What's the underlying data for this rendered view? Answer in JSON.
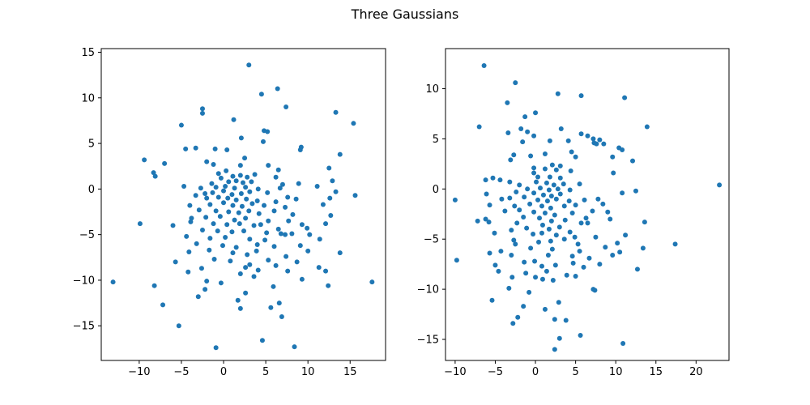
{
  "figure": {
    "title": "Three Gaussians"
  },
  "colors": {
    "marker": "#1f77b4",
    "axes": "#000000",
    "background": "#ffffff"
  },
  "chart_data": [
    {
      "type": "scatter",
      "title": "",
      "xlabel": "",
      "ylabel": "",
      "xlim": [
        -14.5,
        19.2
      ],
      "ylim": [
        -18.8,
        15.4
      ],
      "xticks": [
        -10,
        -5,
        0,
        5,
        10,
        15
      ],
      "yticks": [
        -15,
        -10,
        -5,
        0,
        5,
        10,
        15
      ],
      "grid": false,
      "points": [
        [
          3.0,
          13.6
        ],
        [
          6.4,
          11.0
        ],
        [
          4.5,
          10.4
        ],
        [
          7.4,
          9.0
        ],
        [
          -2.5,
          8.8
        ],
        [
          -2.5,
          8.3
        ],
        [
          13.3,
          8.4
        ],
        [
          1.2,
          7.6
        ],
        [
          -5.0,
          7.0
        ],
        [
          15.4,
          7.2
        ],
        [
          4.8,
          6.4
        ],
        [
          5.2,
          6.3
        ],
        [
          2.1,
          5.6
        ],
        [
          4.7,
          5.2
        ],
        [
          -3.3,
          4.5
        ],
        [
          -4.5,
          4.4
        ],
        [
          -1.0,
          4.4
        ],
        [
          0.4,
          4.3
        ],
        [
          9.2,
          4.6
        ],
        [
          9.1,
          4.3
        ],
        [
          13.8,
          3.8
        ],
        [
          2.5,
          3.4
        ],
        [
          -9.4,
          3.2
        ],
        [
          -7.0,
          2.8
        ],
        [
          -2.0,
          3.0
        ],
        [
          -1.2,
          2.7
        ],
        [
          2.0,
          2.6
        ],
        [
          5.3,
          2.6
        ],
        [
          6.5,
          2.1
        ],
        [
          12.5,
          2.3
        ],
        [
          -8.3,
          1.8
        ],
        [
          -8.1,
          1.4
        ],
        [
          0.3,
          2.0
        ],
        [
          -0.6,
          1.7
        ],
        [
          3.7,
          1.6
        ],
        [
          -0.3,
          1.2
        ],
        [
          1.1,
          1.4
        ],
        [
          2.0,
          1.5
        ],
        [
          2.8,
          1.3
        ],
        [
          6.2,
          1.3
        ],
        [
          12.9,
          0.9
        ],
        [
          -4.7,
          0.3
        ],
        [
          -1.4,
          0.6
        ],
        [
          0.6,
          0.8
        ],
        [
          1.5,
          0.9
        ],
        [
          2.3,
          0.7
        ],
        [
          3.3,
          0.8
        ],
        [
          7.0,
          0.5
        ],
        [
          8.9,
          0.6
        ],
        [
          11.1,
          0.3
        ],
        [
          -2.7,
          0.1
        ],
        [
          -0.9,
          0.2
        ],
        [
          0.2,
          0.3
        ],
        [
          1.3,
          0.1
        ],
        [
          2.6,
          0.2
        ],
        [
          4.1,
          0.0
        ],
        [
          6.7,
          0.1
        ],
        [
          13.3,
          -0.3
        ],
        [
          15.6,
          -0.7
        ],
        [
          -2.2,
          -0.5
        ],
        [
          -1.3,
          -0.4
        ],
        [
          0.0,
          -0.2
        ],
        [
          1.0,
          -0.6
        ],
        [
          2.1,
          -0.5
        ],
        [
          3.1,
          -0.3
        ],
        [
          5.2,
          -0.4
        ],
        [
          7.6,
          -0.9
        ],
        [
          12.6,
          -1.0
        ],
        [
          -3.3,
          -0.7
        ],
        [
          -2.0,
          -1.0
        ],
        [
          -0.6,
          -0.9
        ],
        [
          0.5,
          -1.0
        ],
        [
          1.5,
          -1.2
        ],
        [
          2.7,
          -1.1
        ],
        [
          4.0,
          -1.3
        ],
        [
          6.2,
          -1.4
        ],
        [
          8.6,
          -1.1
        ],
        [
          -4.0,
          -1.8
        ],
        [
          -1.6,
          -1.7
        ],
        [
          0.0,
          -1.5
        ],
        [
          1.1,
          -1.8
        ],
        [
          2.2,
          -1.9
        ],
        [
          3.4,
          -1.6
        ],
        [
          4.8,
          -1.8
        ],
        [
          7.3,
          -2.0
        ],
        [
          11.8,
          -1.7
        ],
        [
          -2.9,
          -2.3
        ],
        [
          -0.9,
          -2.4
        ],
        [
          0.6,
          -2.5
        ],
        [
          1.8,
          -2.6
        ],
        [
          3.0,
          -2.4
        ],
        [
          4.2,
          -2.7
        ],
        [
          6.0,
          -2.4
        ],
        [
          8.2,
          -2.8
        ],
        [
          -3.8,
          -3.2
        ],
        [
          -2.1,
          -3.1
        ],
        [
          -0.4,
          -3.0
        ],
        [
          1.3,
          -3.4
        ],
        [
          2.6,
          -3.2
        ],
        [
          5.3,
          -3.5
        ],
        [
          7.7,
          -3.5
        ],
        [
          12.7,
          -2.9
        ],
        [
          -3.9,
          -3.6
        ],
        [
          -1.2,
          -3.8
        ],
        [
          0.4,
          -3.9
        ],
        [
          1.9,
          -3.8
        ],
        [
          3.6,
          -4.0
        ],
        [
          4.4,
          -3.9
        ],
        [
          6.5,
          -4.4
        ],
        [
          9.3,
          -3.9
        ],
        [
          9.9,
          -4.3
        ],
        [
          12.1,
          -3.8
        ],
        [
          -2.5,
          -4.5
        ],
        [
          -0.7,
          -4.6
        ],
        [
          1.0,
          -4.7
        ],
        [
          2.4,
          -4.6
        ],
        [
          5.1,
          -4.8
        ],
        [
          6.8,
          -4.9
        ],
        [
          7.3,
          -5.0
        ],
        [
          8.1,
          -4.9
        ],
        [
          10.2,
          -5.0
        ],
        [
          -4.4,
          -5.2
        ],
        [
          -1.6,
          -5.4
        ],
        [
          0.2,
          -5.3
        ],
        [
          3.1,
          -5.5
        ],
        [
          4.9,
          -5.6
        ],
        [
          11.4,
          -5.5
        ],
        [
          -3.2,
          -6.0
        ],
        [
          -0.1,
          -6.2
        ],
        [
          1.5,
          -6.4
        ],
        [
          4.0,
          -6.1
        ],
        [
          6.0,
          -6.3
        ],
        [
          9.1,
          -6.2
        ],
        [
          -4.1,
          -6.9
        ],
        [
          -1.7,
          -6.7
        ],
        [
          1.1,
          -7.0
        ],
        [
          2.8,
          -7.2
        ],
        [
          7.4,
          -7.4
        ],
        [
          10.0,
          -6.8
        ],
        [
          13.8,
          -7.0
        ],
        [
          -1.1,
          -7.7
        ],
        [
          0.8,
          -7.9
        ],
        [
          3.1,
          -8.3
        ],
        [
          5.3,
          -7.8
        ],
        [
          8.7,
          -8.0
        ],
        [
          11.3,
          -8.6
        ],
        [
          -5.7,
          -8.0
        ],
        [
          -2.6,
          -8.7
        ],
        [
          2.6,
          -8.6
        ],
        [
          4.1,
          -8.9
        ],
        [
          6.2,
          -8.4
        ],
        [
          -4.2,
          -9.1
        ],
        [
          2.0,
          -9.3
        ],
        [
          3.6,
          -9.6
        ],
        [
          7.6,
          -9.0
        ],
        [
          12.1,
          -9.0
        ],
        [
          -13.1,
          -10.2
        ],
        [
          -8.2,
          -10.6
        ],
        [
          -2.0,
          -10.1
        ],
        [
          12.4,
          -10.6
        ],
        [
          17.6,
          -10.2
        ],
        [
          -2.2,
          -11.0
        ],
        [
          2.6,
          -11.4
        ],
        [
          -3.0,
          -11.8
        ],
        [
          -7.2,
          -12.7
        ],
        [
          6.6,
          -12.5
        ],
        [
          5.6,
          -13.0
        ],
        [
          6.9,
          -14.0
        ],
        [
          -5.3,
          -15.0
        ],
        [
          4.6,
          -16.6
        ],
        [
          -0.9,
          -17.4
        ],
        [
          8.4,
          -17.3
        ],
        [
          -9.9,
          -3.8
        ],
        [
          -6.0,
          -4.0
        ],
        [
          2.0,
          -13.1
        ],
        [
          3.9,
          -6.8
        ],
        [
          -0.3,
          -10.3
        ],
        [
          1.7,
          -12.2
        ],
        [
          9.3,
          -9.9
        ],
        [
          5.9,
          -10.7
        ]
      ]
    },
    {
      "type": "scatter",
      "title": "",
      "xlabel": "",
      "ylabel": "",
      "xlim": [
        -11.2,
        24.1
      ],
      "ylim": [
        -17.1,
        14.0
      ],
      "xticks": [
        -10,
        -5,
        0,
        5,
        10,
        15,
        20
      ],
      "yticks": [
        -15,
        -10,
        -5,
        0,
        5,
        10
      ],
      "grid": false,
      "points": [
        [
          -6.4,
          12.3
        ],
        [
          -2.5,
          10.6
        ],
        [
          2.8,
          9.5
        ],
        [
          5.7,
          9.3
        ],
        [
          11.1,
          9.1
        ],
        [
          -3.5,
          8.6
        ],
        [
          0.0,
          7.6
        ],
        [
          -1.3,
          7.2
        ],
        [
          -7.0,
          6.2
        ],
        [
          13.9,
          6.2
        ],
        [
          -1.8,
          6.0
        ],
        [
          -1.0,
          5.7
        ],
        [
          -3.4,
          5.6
        ],
        [
          -0.2,
          5.3
        ],
        [
          3.2,
          6.0
        ],
        [
          5.7,
          5.5
        ],
        [
          6.5,
          5.3
        ],
        [
          7.2,
          5.0
        ],
        [
          8.0,
          4.9
        ],
        [
          8.5,
          4.5
        ],
        [
          -1.6,
          4.7
        ],
        [
          1.8,
          4.8
        ],
        [
          4.1,
          4.8
        ],
        [
          7.3,
          4.6
        ],
        [
          7.6,
          4.5
        ],
        [
          10.4,
          4.1
        ],
        [
          10.8,
          3.9
        ],
        [
          -2.7,
          3.4
        ],
        [
          -0.6,
          3.3
        ],
        [
          1.2,
          3.5
        ],
        [
          4.5,
          3.7
        ],
        [
          5.0,
          3.2
        ],
        [
          9.6,
          3.2
        ],
        [
          12.1,
          2.8
        ],
        [
          -3.1,
          2.9
        ],
        [
          2.1,
          2.4
        ],
        [
          3.1,
          2.3
        ],
        [
          -0.2,
          2.1
        ],
        [
          1.2,
          2.0
        ],
        [
          2.6,
          1.9
        ],
        [
          4.4,
          1.8
        ],
        [
          9.7,
          1.6
        ],
        [
          -0.2,
          1.6
        ],
        [
          0.3,
          1.2
        ],
        [
          1.8,
          1.2
        ],
        [
          3.1,
          1.1
        ],
        [
          -5.3,
          1.1
        ],
        [
          -6.2,
          0.9
        ],
        [
          -4.4,
          0.9
        ],
        [
          -3.2,
          0.7
        ],
        [
          -2.0,
          0.4
        ],
        [
          0.1,
          0.7
        ],
        [
          1.4,
          0.6
        ],
        [
          2.3,
          0.4
        ],
        [
          3.5,
          0.5
        ],
        [
          5.5,
          0.5
        ],
        [
          22.9,
          0.4
        ],
        [
          -1.0,
          0.0
        ],
        [
          0.6,
          0.1
        ],
        [
          1.7,
          -0.1
        ],
        [
          2.8,
          0.0
        ],
        [
          4.3,
          -0.1
        ],
        [
          -2.4,
          -0.3
        ],
        [
          -0.2,
          -0.4
        ],
        [
          1.0,
          -0.6
        ],
        [
          2.0,
          -0.7
        ],
        [
          3.1,
          -0.5
        ],
        [
          10.8,
          -0.4
        ],
        [
          12.5,
          -0.2
        ],
        [
          -6.1,
          -0.5
        ],
        [
          -3.2,
          -0.9
        ],
        [
          -1.4,
          -0.8
        ],
        [
          0.3,
          -1.1
        ],
        [
          1.5,
          -1.2
        ],
        [
          2.6,
          -1.0
        ],
        [
          4.2,
          -1.2
        ],
        [
          6.1,
          -1.1
        ],
        [
          7.8,
          -1.0
        ],
        [
          -10.0,
          -1.1
        ],
        [
          -5.7,
          -1.6
        ],
        [
          -2.6,
          -1.7
        ],
        [
          -0.7,
          -1.5
        ],
        [
          0.8,
          -1.7
        ],
        [
          1.9,
          -1.9
        ],
        [
          3.6,
          -1.7
        ],
        [
          5.0,
          -1.6
        ],
        [
          8.4,
          -1.5
        ],
        [
          -2.0,
          -2.1
        ],
        [
          -0.2,
          -2.3
        ],
        [
          1.2,
          -2.4
        ],
        [
          2.4,
          -2.6
        ],
        [
          4.6,
          -2.4
        ],
        [
          7.1,
          -2.2
        ],
        [
          9.0,
          -2.3
        ],
        [
          -1.5,
          -2.8
        ],
        [
          0.5,
          -2.9
        ],
        [
          2.0,
          -3.2
        ],
        [
          3.7,
          -3.1
        ],
        [
          -6.2,
          -3.0
        ],
        [
          -5.8,
          -3.3
        ],
        [
          -7.2,
          -3.2
        ],
        [
          -2.3,
          -3.4
        ],
        [
          0.9,
          -3.6
        ],
        [
          5.7,
          -3.4
        ],
        [
          6.5,
          -3.4
        ],
        [
          9.3,
          -3.0
        ],
        [
          13.6,
          -3.3
        ],
        [
          -1.1,
          -3.9
        ],
        [
          1.7,
          -4.0
        ],
        [
          3.0,
          -3.8
        ],
        [
          4.3,
          -4.3
        ],
        [
          11.2,
          -4.6
        ],
        [
          -3.0,
          -4.1
        ],
        [
          -0.3,
          -4.5
        ],
        [
          0.8,
          -4.4
        ],
        [
          2.6,
          -4.6
        ],
        [
          4.9,
          -4.8
        ],
        [
          7.5,
          -4.8
        ],
        [
          -5.1,
          -4.4
        ],
        [
          -2.7,
          -5.1
        ],
        [
          0.4,
          -5.3
        ],
        [
          1.9,
          -5.2
        ],
        [
          3.6,
          -5.0
        ],
        [
          5.3,
          -5.5
        ],
        [
          10.2,
          -5.4
        ],
        [
          17.4,
          -5.5
        ],
        [
          -2.5,
          -5.5
        ],
        [
          -0.6,
          -5.9
        ],
        [
          2.1,
          -6.0
        ],
        [
          5.5,
          -6.2
        ],
        [
          8.7,
          -5.8
        ],
        [
          10.5,
          -6.3
        ],
        [
          13.4,
          -5.9
        ],
        [
          -5.7,
          -6.4
        ],
        [
          -4.3,
          -6.2
        ],
        [
          -3.0,
          -6.6
        ],
        [
          1.6,
          -6.6
        ],
        [
          4.6,
          -6.7
        ],
        [
          6.7,
          -6.9
        ],
        [
          9.6,
          -6.6
        ],
        [
          -9.8,
          -7.1
        ],
        [
          -5.0,
          -7.6
        ],
        [
          -1.4,
          -7.3
        ],
        [
          0.8,
          -7.7
        ],
        [
          2.5,
          -7.6
        ],
        [
          4.7,
          -7.4
        ],
        [
          6.0,
          -7.8
        ],
        [
          8.0,
          -7.5
        ],
        [
          12.7,
          -8.0
        ],
        [
          -4.6,
          -8.2
        ],
        [
          -1.2,
          -8.4
        ],
        [
          1.4,
          -8.2
        ],
        [
          3.9,
          -8.6
        ],
        [
          -2.9,
          -8.8
        ],
        [
          0.0,
          -8.8
        ],
        [
          0.9,
          -9.0
        ],
        [
          2.2,
          -9.1
        ],
        [
          5.0,
          -8.7
        ],
        [
          -0.1,
          -7.2
        ],
        [
          -3.3,
          -9.9
        ],
        [
          -0.8,
          -10.3
        ],
        [
          7.2,
          -10.0
        ],
        [
          7.4,
          -10.1
        ],
        [
          -5.4,
          -11.1
        ],
        [
          -1.5,
          -11.7
        ],
        [
          2.9,
          -11.3
        ],
        [
          -2.2,
          -12.8
        ],
        [
          -2.8,
          -13.4
        ],
        [
          2.4,
          -13.0
        ],
        [
          3.8,
          -13.1
        ],
        [
          3.0,
          -14.9
        ],
        [
          5.6,
          -14.6
        ],
        [
          10.9,
          -15.4
        ],
        [
          2.4,
          -16.0
        ],
        [
          -3.8,
          -2.2
        ],
        [
          1.2,
          -12.0
        ],
        [
          6.3,
          -2.9
        ],
        [
          -4.2,
          -1.0
        ]
      ]
    }
  ]
}
